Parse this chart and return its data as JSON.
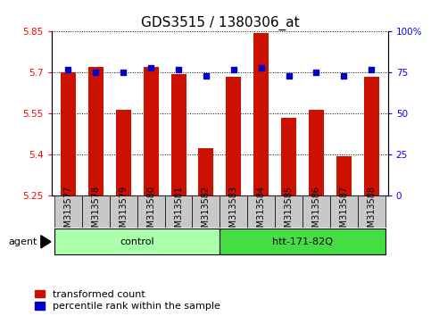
{
  "title": "GDS3515 / 1380306_at",
  "samples": [
    "GSM313577",
    "GSM313578",
    "GSM313579",
    "GSM313580",
    "GSM313581",
    "GSM313582",
    "GSM313583",
    "GSM313584",
    "GSM313585",
    "GSM313586",
    "GSM313587",
    "GSM313588"
  ],
  "transformed_count": [
    5.7,
    5.72,
    5.565,
    5.72,
    5.695,
    5.425,
    5.685,
    5.845,
    5.535,
    5.565,
    5.395,
    5.685
  ],
  "percentile_rank": [
    77,
    75,
    75,
    78,
    77,
    73,
    77,
    78,
    73,
    75,
    73,
    77
  ],
  "groups": [
    {
      "label": "control",
      "start": 0,
      "end": 5,
      "color": "#AAFFAA"
    },
    {
      "label": "htt-171-82Q",
      "start": 6,
      "end": 11,
      "color": "#44DD44"
    }
  ],
  "ylim_left": [
    5.25,
    5.85
  ],
  "ylim_right": [
    0,
    100
  ],
  "yticks_left": [
    5.25,
    5.4,
    5.55,
    5.7,
    5.85
  ],
  "yticks_right": [
    0,
    25,
    50,
    75,
    100
  ],
  "ytick_labels_right": [
    "0",
    "25",
    "50",
    "75",
    "100%"
  ],
  "bar_color": "#CC1100",
  "dot_color": "#0000CC",
  "bar_width": 0.55,
  "agent_label": "agent",
  "legend_bar_label": "transformed count",
  "legend_dot_label": "percentile rank within the sample",
  "title_fontsize": 11,
  "tick_fontsize": 7.5,
  "label_fontsize": 8,
  "group_label_fontsize": 8
}
